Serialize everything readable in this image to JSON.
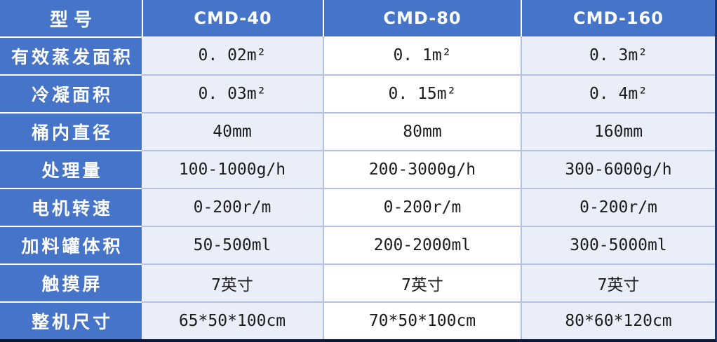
{
  "table": {
    "title": "product-specification-table",
    "header": {
      "model_label": "型号",
      "columns": [
        "CMD-40",
        "CMD-80",
        "CMD-160"
      ]
    },
    "rows": [
      {
        "label": "有效蒸发面积",
        "values": [
          "0. 02m²",
          "0. 1m²",
          "0. 3m²"
        ]
      },
      {
        "label": "冷凝面积",
        "values": [
          "0. 03m²",
          "0. 15m²",
          "0. 4m²"
        ]
      },
      {
        "label": "桶内直径",
        "values": [
          "40mm",
          "80mm",
          "160mm"
        ]
      },
      {
        "label": "处理量",
        "values": [
          "100-1000g/h",
          "200-3000g/h",
          "300-6000g/h"
        ]
      },
      {
        "label": "电机转速",
        "values": [
          "0-200r/m",
          "0-200r/m",
          "0-200r/m"
        ]
      },
      {
        "label": "加料罐体积",
        "values": [
          "50-500ml",
          "200-2000ml",
          "300-5000ml"
        ]
      },
      {
        "label": "触摸屏",
        "values": [
          "7英寸",
          "7英寸",
          "7英寸"
        ]
      },
      {
        "label": "整机尺寸",
        "values": [
          "65*50*100cm",
          "70*50*100cm",
          "80*60*120cm"
        ]
      }
    ],
    "colors": {
      "header_blue": "#4674C8",
      "row_band_tint": "#EAEEF8",
      "row_band_white": "#FFFFFF",
      "grid_line": "#B3C2E1",
      "separator_white": "#FFFFFF",
      "outer_border_right": "#1E3A6E",
      "outer_border_bottom": "#0C1838",
      "header_text": "#FFFFFF",
      "data_text": "#1C1C1C"
    }
  }
}
